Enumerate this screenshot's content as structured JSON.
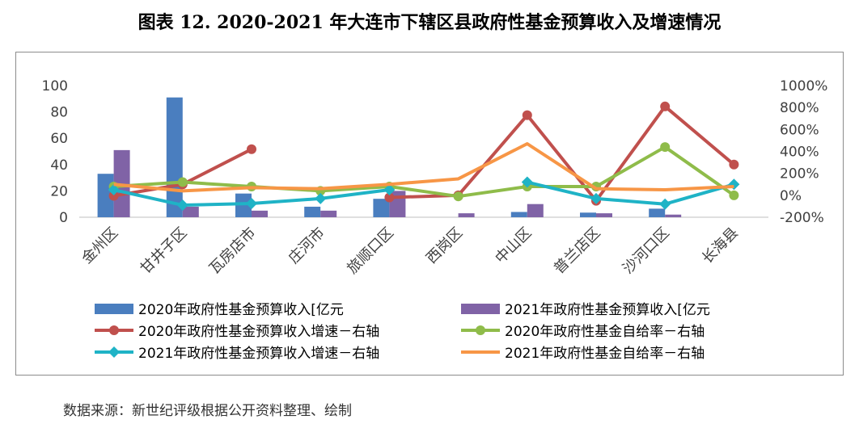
{
  "title": "图表 12. 2020-2021 年大连市下辖区县政府性基金预算收入及增速情况",
  "source": "数据来源：新世纪评级根据公开资料整理、绘制",
  "chart_data": {
    "type": "bar+line",
    "categories": [
      "金州区",
      "甘井子区",
      "瓦房店市",
      "庄河市",
      "旅顺口区",
      "西岗区",
      "中山区",
      "普兰店区",
      "沙河口区",
      "长海县"
    ],
    "left_axis": {
      "range": [
        0,
        100
      ],
      "ticks": [
        "0",
        "20",
        "40",
        "60",
        "80",
        "100"
      ]
    },
    "right_axis": {
      "range": [
        -200,
        1000
      ],
      "ticks": [
        "-200%",
        "0%",
        "200%",
        "400%",
        "600%",
        "800%",
        "1000%"
      ]
    },
    "bar_series": [
      {
        "name": "2020年政府性基金预算收入[亿元",
        "color": "#4a7ebf",
        "values": [
          33,
          91,
          18,
          8,
          14,
          0,
          4,
          3.5,
          6.5,
          0
        ]
      },
      {
        "name": "2021年政府性基金预算收入[亿元",
        "color": "#8063a6",
        "values": [
          51,
          8,
          5,
          5,
          20,
          3,
          10,
          3,
          2,
          0
        ]
      }
    ],
    "line_series": [
      {
        "name": "2020年政府性基金预算收入增速－右轴",
        "color": "#c0504d",
        "marker": "circle",
        "values": [
          -5,
          100,
          420,
          null,
          -20,
          0,
          730,
          -50,
          810,
          280
        ]
      },
      {
        "name": "2020年政府性基金自给率－右轴",
        "color": "#8fbc4a",
        "marker": "circle",
        "values": [
          80,
          120,
          80,
          40,
          80,
          -10,
          80,
          80,
          440,
          0
        ]
      },
      {
        "name": "2021年政府性基金预算收入增速－右轴",
        "color": "#1fb3c6",
        "marker": "diamond",
        "values": [
          50,
          -90,
          -75,
          -30,
          50,
          null,
          120,
          -30,
          -80,
          100
        ]
      },
      {
        "name": "2021年政府性基金自给率－右轴",
        "color": "#f79646",
        "marker": "none",
        "values": [
          100,
          40,
          70,
          60,
          100,
          150,
          470,
          60,
          50,
          80
        ]
      }
    ],
    "legend_position": "bottom"
  }
}
